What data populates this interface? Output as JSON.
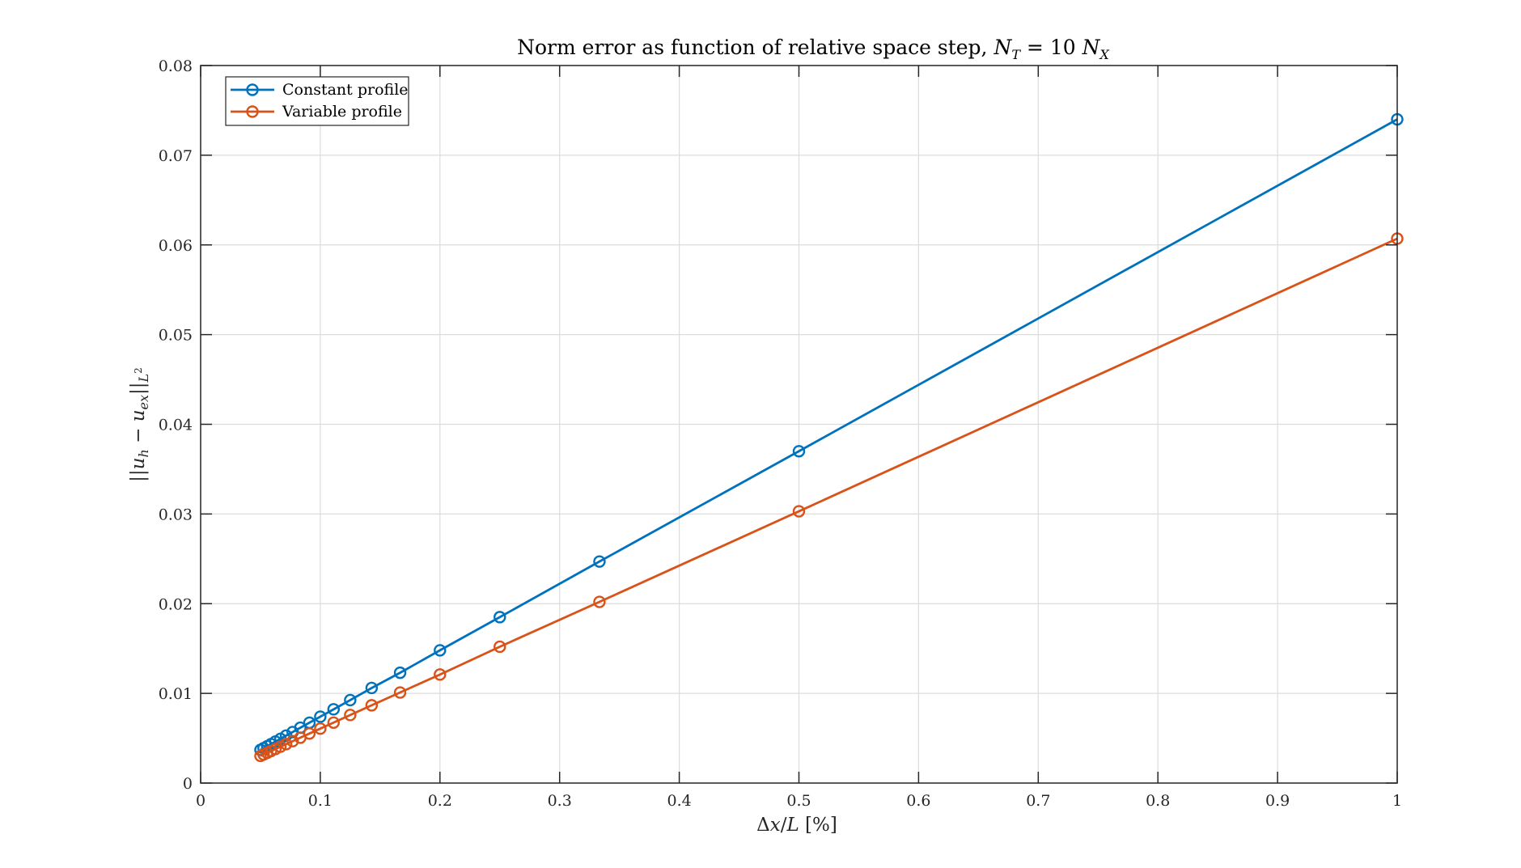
{
  "chart_data": {
    "type": "line",
    "title": "Norm error as function of relative space step, N_T = 10 N_X",
    "xlabel": "Δx/L [%]",
    "ylabel": "||u_h − u_ex||_L²",
    "xlim": [
      0,
      1
    ],
    "ylim": [
      0,
      0.08
    ],
    "xticks": [
      0,
      0.1,
      0.2,
      0.3,
      0.4,
      0.5,
      0.6,
      0.7,
      0.8,
      0.9,
      1
    ],
    "xtick_labels": [
      "0",
      "0.1",
      "0.2",
      "0.3",
      "0.4",
      "0.5",
      "0.6",
      "0.7",
      "0.8",
      "0.9",
      "1"
    ],
    "yticks": [
      0,
      0.01,
      0.02,
      0.03,
      0.04,
      0.05,
      0.06,
      0.07,
      0.08
    ],
    "ytick_labels": [
      "0",
      "0.01",
      "0.02",
      "0.03",
      "0.04",
      "0.05",
      "0.06",
      "0.07",
      "0.08"
    ],
    "grid": true,
    "legend_position": "top-left",
    "marker": "circle",
    "x": [
      1,
      0.5,
      0.3333,
      0.25,
      0.2,
      0.1667,
      0.1429,
      0.125,
      0.1111,
      0.1,
      0.0909,
      0.0833,
      0.0769,
      0.0714,
      0.0667,
      0.0625,
      0.0588,
      0.0556,
      0.0526,
      0.05
    ],
    "series": [
      {
        "name": "Constant profile",
        "color": "#0072BD",
        "values": [
          0.074,
          0.037,
          0.0247,
          0.0185,
          0.0148,
          0.0123,
          0.0106,
          0.00925,
          0.00822,
          0.0074,
          0.00673,
          0.00617,
          0.00569,
          0.00529,
          0.00493,
          0.00463,
          0.00435,
          0.00411,
          0.00389,
          0.0037
        ]
      },
      {
        "name": "Variable profile",
        "color": "#D95319",
        "values": [
          0.0607,
          0.0303,
          0.0202,
          0.0152,
          0.0121,
          0.0101,
          0.00867,
          0.00759,
          0.00674,
          0.00607,
          0.00552,
          0.00506,
          0.00467,
          0.00434,
          0.00405,
          0.00379,
          0.00357,
          0.00337,
          0.00319,
          0.00303
        ]
      }
    ]
  }
}
